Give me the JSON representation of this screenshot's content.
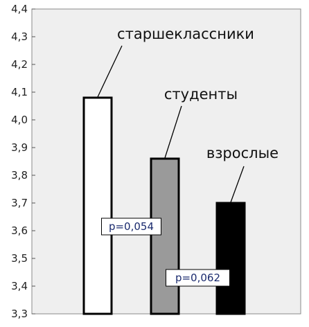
{
  "chart_data": {
    "type": "bar",
    "categories": [
      "старшеклассники",
      "студенты",
      "взрослые"
    ],
    "values": [
      4.08,
      3.86,
      3.7
    ],
    "bar_colors": [
      "#ffffff",
      "#9a9a9a",
      "#000000"
    ],
    "ylim": [
      3.3,
      4.4
    ],
    "yticks": [
      "3,3",
      "3,4",
      "3,5",
      "3,6",
      "3,7",
      "3,8",
      "3,9",
      "4,0",
      "4,1",
      "4,2",
      "4,3",
      "4,4"
    ],
    "background": "#efefef",
    "grid": false,
    "annotations": [
      {
        "text": "p=0,054",
        "from": 0,
        "to": 1,
        "y": 3.615
      },
      {
        "text": "p=0,062",
        "from": 1,
        "to": 2,
        "y": 3.43
      }
    ]
  }
}
